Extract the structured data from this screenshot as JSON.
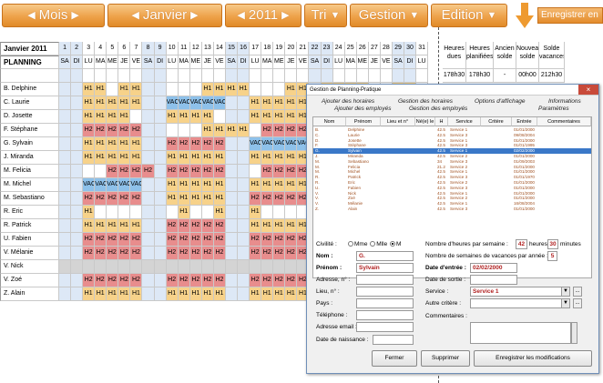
{
  "toolbar": {
    "mois": "Mois",
    "month": "Janvier",
    "year": "2011",
    "tri": "Tri",
    "gestion": "Gestion",
    "edition": "Edition",
    "save": "Enregistrer en",
    "colors": {
      "orange": "#eea24a"
    }
  },
  "planning": {
    "title": "Janvier 2011",
    "subtitle": "PLANNING",
    "days": [
      "1",
      "2",
      "3",
      "4",
      "5",
      "6",
      "7",
      "8",
      "9",
      "10",
      "11",
      "12",
      "13",
      "14",
      "15",
      "16",
      "17",
      "18",
      "19",
      "20",
      "21",
      "22",
      "23",
      "24",
      "25",
      "26",
      "27",
      "28",
      "29",
      "30",
      "31"
    ],
    "weekdays": [
      "SA",
      "DI",
      "LU",
      "MA",
      "ME",
      "JE",
      "VE",
      "SA",
      "DI",
      "LU",
      "MA",
      "ME",
      "JE",
      "VE",
      "SA",
      "DI",
      "LU",
      "MA",
      "ME",
      "JE",
      "VE",
      "SA",
      "DI",
      "LU",
      "MA",
      "ME",
      "JE",
      "VE",
      "SA",
      "DI",
      "LU"
    ],
    "right_headers": [
      "Heures dues",
      "Heures planifiées",
      "Ancien solde",
      "Nouveau solde",
      "Solde vacances"
    ],
    "right_values": [
      "178h30",
      "178h30",
      "-",
      "00h00",
      "212h30"
    ],
    "employees": [
      {
        "name": "B. Delphine",
        "cells": "..H1H1.H1H1....H1H1H1H1...H1H1..H1H1"
      },
      {
        "name": "C. Laurie"
      },
      {
        "name": "D. Josette"
      },
      {
        "name": "F. Stéphane"
      },
      {
        "name": "G. Sylvain"
      },
      {
        "name": "J. Miranda"
      },
      {
        "name": "M. Felicia"
      },
      {
        "name": "M. Michel"
      },
      {
        "name": "M. Sebastiano"
      },
      {
        "name": "R. Eric"
      },
      {
        "name": "R. Patrick"
      },
      {
        "name": "U. Fabien"
      },
      {
        "name": "V. Mélanie"
      },
      {
        "name": "V. Nick"
      },
      {
        "name": "V. Zoé"
      },
      {
        "name": "Z. Alain"
      }
    ]
  },
  "dialog": {
    "title": "Gestion de Planning-Pratique",
    "close": "×",
    "tabs_row1": [
      "Ajouter des horaires",
      "Gestion des horaires",
      "Options d'affichage",
      "Informations"
    ],
    "tabs_row2": [
      "Ajouter des employés",
      "Gestion des employés",
      "Paramètres"
    ],
    "list_headers": [
      "Nom",
      "Prénom",
      "Lieu et n°",
      "Né(e) le",
      "H",
      "Service",
      "Critère",
      "Entrée",
      "Commentaires"
    ],
    "list_rows": [
      {
        "nom": "B.",
        "prenom": "Delphine",
        "h": "42.5",
        "service": "Service 1",
        "entree": "01/01/2000"
      },
      {
        "nom": "C.",
        "prenom": "Laurie",
        "h": "42.5",
        "service": "Service 3",
        "entree": "09/08/2004"
      },
      {
        "nom": "D.",
        "prenom": "Josette",
        "h": "42.5",
        "service": "Service 1",
        "entree": "01/01/2000"
      },
      {
        "nom": "F.",
        "prenom": "Stéphane",
        "h": "42.5",
        "service": "Service 3",
        "entree": "01/01/1995"
      },
      {
        "nom": "G.",
        "prenom": "Sylvain",
        "h": "42.5",
        "service": "Service 1",
        "entree": "02/02/2000"
      },
      {
        "nom": "J.",
        "prenom": "Miranda",
        "h": "42.5",
        "service": "Service 2",
        "entree": "01/01/2000"
      },
      {
        "nom": "M.",
        "prenom": "Sebastiano",
        "h": "34",
        "service": "Service 3",
        "entree": "01/09/2003"
      },
      {
        "nom": "M.",
        "prenom": "Felicia",
        "h": "21.2",
        "service": "Service 2",
        "entree": "01/01/2000"
      },
      {
        "nom": "M.",
        "prenom": "Michel",
        "h": "42.5",
        "service": "Service 1",
        "entree": "01/01/2000"
      },
      {
        "nom": "R.",
        "prenom": "Patrick",
        "h": "42.5",
        "service": "Service 3",
        "entree": "01/01/1970"
      },
      {
        "nom": "R.",
        "prenom": "Eric",
        "h": "42.5",
        "service": "Service 2",
        "entree": "01/01/2000"
      },
      {
        "nom": "U.",
        "prenom": "Fabien",
        "h": "42.5",
        "service": "Service 3",
        "entree": "01/01/2000"
      },
      {
        "nom": "V.",
        "prenom": "Nick",
        "h": "42.5",
        "service": "Service 1",
        "entree": "01/01/2000"
      },
      {
        "nom": "V.",
        "prenom": "Zoé",
        "h": "42.5",
        "service": "Service 2",
        "entree": "01/01/2000"
      },
      {
        "nom": "V.",
        "prenom": "Mélanie",
        "h": "42.5",
        "service": "Service 1",
        "entree": "16/08/2004"
      },
      {
        "nom": "Z.",
        "prenom": "Alain",
        "h": "42.5",
        "service": "Service 3",
        "entree": "01/01/2000"
      }
    ],
    "form": {
      "civilite": "Civilité :",
      "mme": "Mme",
      "mlle": "Mlle",
      "m": "M",
      "nom_label": "Nom :",
      "nom_value": "G.",
      "prenom_label": "Prénom :",
      "prenom_value": "Sylvain",
      "adresse": "Adresse, n° :",
      "lieu": "Lieu, n° :",
      "pays": "Pays :",
      "telephone": "Téléphone :",
      "email": "Adresse email :",
      "naissance": "Date de naissance :",
      "heures_label": "Nombre d'heures par semaine :",
      "heures_value": "42",
      "heures_unit": "heures",
      "minutes_value": "30",
      "minutes_unit": "minutes",
      "vacances_label": "Nombre de semaines de vacances par année :",
      "vacances_value": "5",
      "entree_label": "Date d'entrée :",
      "entree_value": "02/02/2000",
      "sortie_label": "Date de sortie :",
      "service_label": "Service :",
      "service_value": "Service 1",
      "critere_label": "Autre critère :",
      "comment_label": "Commentaires :",
      "dots": "..."
    },
    "buttons": {
      "fermer": "Fermer",
      "supprimer": "Supprimer",
      "enregistrer": "Enregistrer les modifications"
    }
  }
}
